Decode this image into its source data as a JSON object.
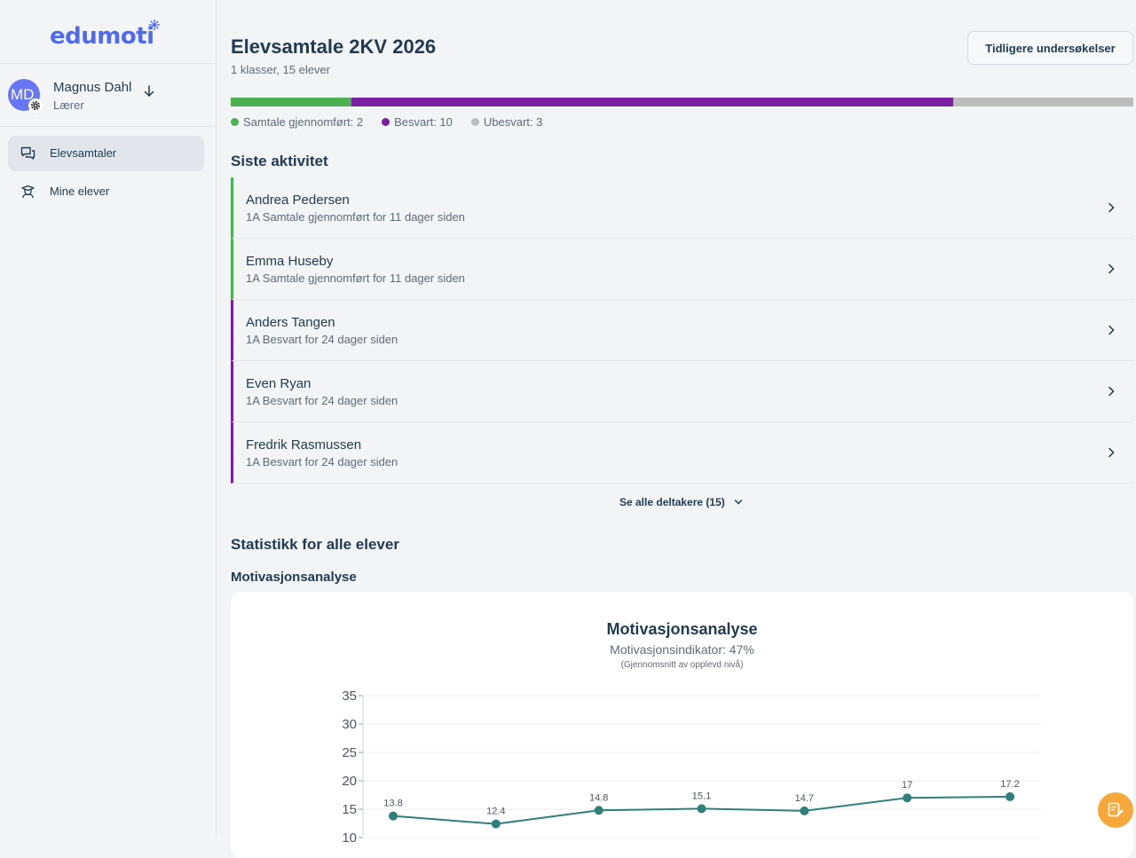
{
  "brand": {
    "logo_text": "edumoti"
  },
  "user": {
    "initials": "MD",
    "name": "Magnus Dahl",
    "role": "Lærer"
  },
  "nav": [
    {
      "label": "Elevsamtaler",
      "icon": "chat-icon",
      "active": true
    },
    {
      "label": "Mine elever",
      "icon": "student-icon",
      "active": false
    }
  ],
  "header": {
    "title": "Elevsamtale 2KV 2026",
    "subtitle": "1 klasser, 15 elever",
    "previous_button": "Tidligere undersøkelser"
  },
  "progress": {
    "segments": [
      {
        "label": "Samtale gjennomført: 2",
        "value": 2,
        "color": "#4caf50"
      },
      {
        "label": "Besvart: 10",
        "value": 10,
        "color": "#7b1fa2"
      },
      {
        "label": "Ubesvart: 3",
        "value": 3,
        "color": "#bdbdbd"
      }
    ]
  },
  "activity": {
    "heading": "Siste aktivitet",
    "items": [
      {
        "name": "Andrea Pedersen",
        "meta": "1A Samtale gjennomført for 11 dager siden",
        "status_color": "#4caf50"
      },
      {
        "name": "Emma Huseby",
        "meta": "1A Samtale gjennomført for 11 dager siden",
        "status_color": "#4caf50"
      },
      {
        "name": "Anders Tangen",
        "meta": "1A Besvart for 24 dager siden",
        "status_color": "#7b1fa2"
      },
      {
        "name": "Even Ryan",
        "meta": "1A Besvart for 24 dager siden",
        "status_color": "#7b1fa2"
      },
      {
        "name": "Fredrik Rasmussen",
        "meta": "1A Besvart for 24 dager siden",
        "status_color": "#7b1fa2"
      }
    ],
    "see_all": "Se alle deltakere (15)"
  },
  "stats": {
    "heading": "Statistikk for alle elever",
    "subheading": "Motivasjonsanalyse"
  },
  "chart_data": {
    "type": "line",
    "title": "Motivasjonsanalyse",
    "subtitle": "Motivasjonsindikator: 47%",
    "note": "(Gjennomsnitt av opplevd nivå)",
    "values": [
      13.8,
      12.4,
      14.8,
      15.1,
      14.7,
      17,
      17.2
    ],
    "value_labels": [
      "13.8",
      "12.4",
      "14.8",
      "15.1",
      "14.7",
      "17",
      "17.2"
    ],
    "y_ticks": [
      "35",
      "30",
      "25",
      "20",
      "15",
      "10"
    ],
    "ylim": [
      10,
      35
    ],
    "line_color": "#2f7f7a",
    "grid": true
  }
}
